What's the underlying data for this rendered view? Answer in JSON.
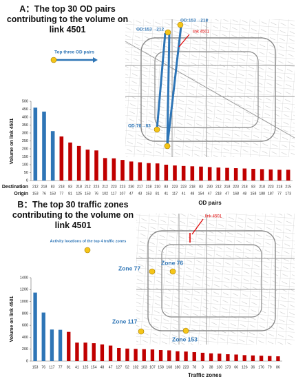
{
  "chart_data": [
    {
      "type": "bar",
      "title": "A：The top 30 OD pairs contributing to the volume on link 4501",
      "y_label": "Volume on link 4501",
      "x_label": "OD pairs",
      "row_labels": [
        "Destination",
        "Origin"
      ],
      "categories": [
        "212",
        "218",
        "83",
        "218",
        "83",
        "218",
        "212",
        "223",
        "212",
        "223",
        "223",
        "230",
        "217",
        "218",
        "210",
        "83",
        "223",
        "223",
        "218",
        "83",
        "230",
        "212",
        "218",
        "223",
        "218",
        "83",
        "218",
        "223",
        "218",
        "215"
      ],
      "origins": [
        "153",
        "76",
        "153",
        "77",
        "81",
        "125",
        "153",
        "76",
        "102",
        "117",
        "107",
        "47",
        "43",
        "153",
        "81",
        "41",
        "117",
        "41",
        "48",
        "154",
        "47",
        "218",
        "47",
        "168",
        "48",
        "158",
        "188",
        "187",
        "77",
        "173"
      ],
      "values": [
        460,
        435,
        312,
        278,
        240,
        218,
        195,
        190,
        142,
        140,
        130,
        120,
        115,
        110,
        108,
        100,
        95,
        92,
        90,
        88,
        85,
        82,
        80,
        78,
        76,
        74,
        72,
        70,
        68,
        68
      ],
      "colors": [
        "#2e75b6",
        "#2e75b6",
        "#2e75b6",
        "#c00000",
        "#c00000",
        "#c00000",
        "#c00000",
        "#c00000",
        "#c00000",
        "#c00000",
        "#c00000",
        "#c00000",
        "#c00000",
        "#c00000",
        "#c00000",
        "#c00000",
        "#c00000",
        "#c00000",
        "#c00000",
        "#c00000",
        "#c00000",
        "#c00000",
        "#c00000",
        "#c00000",
        "#c00000",
        "#c00000",
        "#c00000",
        "#c00000",
        "#c00000",
        "#c00000"
      ],
      "ylim": [
        0,
        500
      ],
      "yticks": [
        0,
        50,
        100,
        150,
        200,
        250,
        300,
        350,
        400,
        450,
        500
      ],
      "annotations": [
        "OD:153→218",
        "OD:153→212",
        "link 4501",
        "OD:76→83",
        "Top three OD pairs"
      ]
    },
    {
      "type": "bar",
      "title": "B：The top 30 traffic zones contributing to the volume on link 4501",
      "y_label": "Volume on link 4501",
      "x_label": "Traffic zones",
      "categories": [
        "153",
        "76",
        "117",
        "77",
        "81",
        "41",
        "125",
        "154",
        "48",
        "47",
        "127",
        "52",
        "102",
        "103",
        "107",
        "158",
        "168",
        "180",
        "223",
        "78",
        "3",
        "38",
        "130",
        "173",
        "66",
        "126",
        "36",
        "176",
        "79",
        "86"
      ],
      "values": [
        1150,
        815,
        530,
        525,
        490,
        310,
        310,
        300,
        280,
        260,
        220,
        210,
        205,
        200,
        195,
        185,
        180,
        165,
        160,
        150,
        140,
        130,
        125,
        115,
        110,
        100,
        95,
        90,
        85,
        80
      ],
      "colors": [
        "#2e75b6",
        "#2e75b6",
        "#2e75b6",
        "#2e75b6",
        "#c00000",
        "#c00000",
        "#c00000",
        "#c00000",
        "#c00000",
        "#c00000",
        "#c00000",
        "#c00000",
        "#c00000",
        "#c00000",
        "#c00000",
        "#c00000",
        "#c00000",
        "#c00000",
        "#c00000",
        "#c00000",
        "#c00000",
        "#c00000",
        "#c00000",
        "#c00000",
        "#c00000",
        "#c00000",
        "#c00000",
        "#c00000",
        "#c00000",
        "#c00000"
      ],
      "ylim": [
        0,
        1400
      ],
      "yticks": [
        0,
        200,
        400,
        600,
        800,
        1000,
        1200,
        1400
      ],
      "annotations": [
        "link 4501",
        "Activity locations of the top 4 traffic zones",
        "Zone 77",
        "Zone 76",
        "Zone 117",
        "Zone 153"
      ]
    }
  ]
}
